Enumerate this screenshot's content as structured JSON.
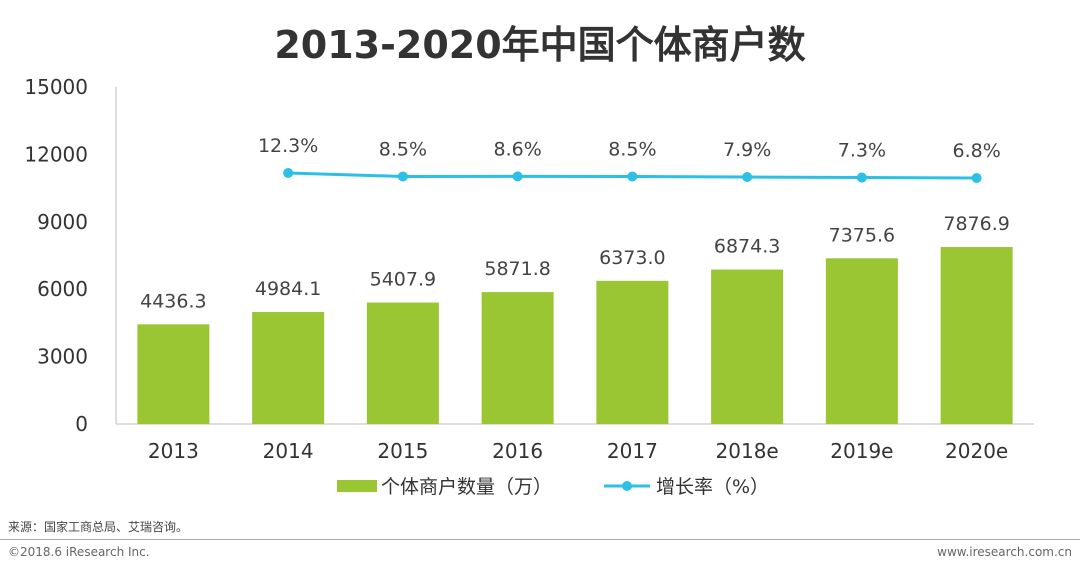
{
  "chart_data": {
    "type": "bar",
    "title": "2013-2020年中国个体商户数",
    "categories": [
      "2013",
      "2014",
      "2015",
      "2016",
      "2017",
      "2018e",
      "2019e",
      "2020e"
    ],
    "y_ticks": [
      "0",
      "3000",
      "6000",
      "9000",
      "12000",
      "15000"
    ],
    "ylim": [
      0,
      15000
    ],
    "grid": false,
    "legend_position": "bottom",
    "series": [
      {
        "name": "个体商户数量（万）",
        "type": "bar",
        "color": "#9bc634",
        "values": [
          4436.3,
          4984.1,
          5407.9,
          5871.8,
          6373.0,
          6874.3,
          7375.6,
          7876.9
        ],
        "labels": [
          "4436.3",
          "4984.1",
          "5407.9",
          "5871.8",
          "6373.0",
          "6874.3",
          "7375.6",
          "7876.9"
        ]
      },
      {
        "name": "增长率（%）",
        "type": "line",
        "color": "#2cc0e4",
        "values": [
          null,
          12.3,
          8.5,
          8.6,
          8.5,
          7.9,
          7.3,
          6.8
        ],
        "labels": [
          null,
          "12.3%",
          "8.5%",
          "8.6%",
          "8.5%",
          "7.9%",
          "7.3%",
          "6.8%"
        ]
      }
    ]
  },
  "footer": {
    "source": "来源：国家工商总局、艾瑞咨询。",
    "copyright": "©2018.6 iResearch Inc.",
    "website": "www.iresearch.com.cn"
  }
}
